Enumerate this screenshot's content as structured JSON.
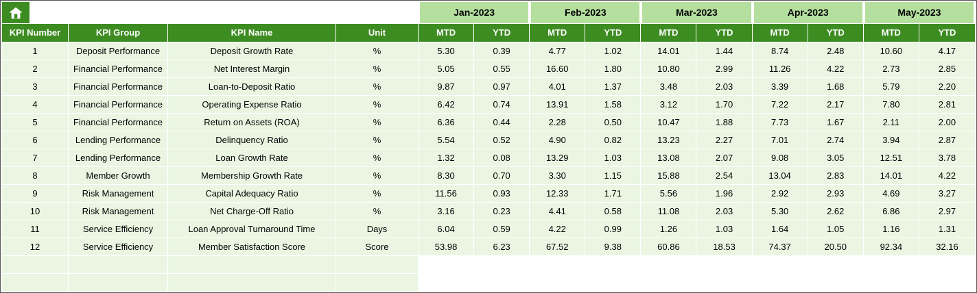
{
  "icons": {
    "home": "home-icon"
  },
  "colors": {
    "header_green": "#3d8c21",
    "month_green": "#b5df9f",
    "row_green": "#eaf6e2",
    "gridline": "#ffffff"
  },
  "table": {
    "fixed_headers": [
      "KPI Number",
      "KPI Group",
      "KPI Name",
      "Unit"
    ],
    "months": [
      "Jan-2023",
      "Feb-2023",
      "Mar-2023",
      "Apr-2023",
      "May-2023"
    ],
    "sub_headers": [
      "MTD",
      "YTD"
    ],
    "rows": [
      {
        "number": "1",
        "group": "Deposit Performance",
        "name": "Deposit Growth Rate",
        "unit": "%",
        "values": [
          "5.30",
          "0.39",
          "4.77",
          "1.02",
          "14.01",
          "1.44",
          "8.74",
          "2.48",
          "10.60",
          "4.17"
        ]
      },
      {
        "number": "2",
        "group": "Financial Performance",
        "name": "Net Interest Margin",
        "unit": "%",
        "values": [
          "5.05",
          "0.55",
          "16.60",
          "1.80",
          "10.80",
          "2.99",
          "11.26",
          "4.22",
          "2.73",
          "2.85"
        ]
      },
      {
        "number": "3",
        "group": "Financial Performance",
        "name": "Loan-to-Deposit Ratio",
        "unit": "%",
        "values": [
          "9.87",
          "0.97",
          "4.01",
          "1.37",
          "3.48",
          "2.03",
          "3.39",
          "1.68",
          "5.79",
          "2.20"
        ]
      },
      {
        "number": "4",
        "group": "Financial Performance",
        "name": "Operating Expense Ratio",
        "unit": "%",
        "values": [
          "6.42",
          "0.74",
          "13.91",
          "1.58",
          "3.12",
          "1.70",
          "7.22",
          "2.17",
          "7.80",
          "2.81"
        ]
      },
      {
        "number": "5",
        "group": "Financial Performance",
        "name": "Return on Assets (ROA)",
        "unit": "%",
        "values": [
          "6.36",
          "0.44",
          "2.28",
          "0.50",
          "10.47",
          "1.88",
          "7.73",
          "1.67",
          "2.11",
          "2.00"
        ]
      },
      {
        "number": "6",
        "group": "Lending Performance",
        "name": "Delinquency Ratio",
        "unit": "%",
        "values": [
          "5.54",
          "0.52",
          "4.90",
          "0.82",
          "13.23",
          "2.27",
          "7.01",
          "2.74",
          "3.94",
          "2.87"
        ]
      },
      {
        "number": "7",
        "group": "Lending Performance",
        "name": "Loan Growth Rate",
        "unit": "%",
        "values": [
          "1.32",
          "0.08",
          "13.29",
          "1.03",
          "13.08",
          "2.07",
          "9.08",
          "3.05",
          "12.51",
          "3.78"
        ]
      },
      {
        "number": "8",
        "group": "Member Growth",
        "name": "Membership Growth Rate",
        "unit": "%",
        "values": [
          "8.30",
          "0.70",
          "3.30",
          "1.15",
          "15.88",
          "2.54",
          "13.04",
          "2.83",
          "14.01",
          "4.22"
        ]
      },
      {
        "number": "9",
        "group": "Risk Management",
        "name": "Capital Adequacy Ratio",
        "unit": "%",
        "values": [
          "11.56",
          "0.93",
          "12.33",
          "1.71",
          "5.56",
          "1.96",
          "2.92",
          "2.93",
          "4.69",
          "3.27"
        ]
      },
      {
        "number": "10",
        "group": "Risk Management",
        "name": "Net Charge-Off Ratio",
        "unit": "%",
        "values": [
          "3.16",
          "0.23",
          "4.41",
          "0.58",
          "11.08",
          "2.03",
          "5.30",
          "2.62",
          "6.86",
          "2.97"
        ]
      },
      {
        "number": "11",
        "group": "Service Efficiency",
        "name": "Loan Approval Turnaround Time",
        "unit": "Days",
        "values": [
          "6.04",
          "0.59",
          "4.22",
          "0.99",
          "1.26",
          "1.03",
          "1.64",
          "1.05",
          "1.16",
          "1.31"
        ]
      },
      {
        "number": "12",
        "group": "Service Efficiency",
        "name": "Member Satisfaction Score",
        "unit": "Score",
        "values": [
          "53.98",
          "6.23",
          "67.52",
          "9.38",
          "60.86",
          "18.53",
          "74.37",
          "20.50",
          "92.34",
          "32.16"
        ]
      }
    ],
    "empty_row_count": 2
  }
}
